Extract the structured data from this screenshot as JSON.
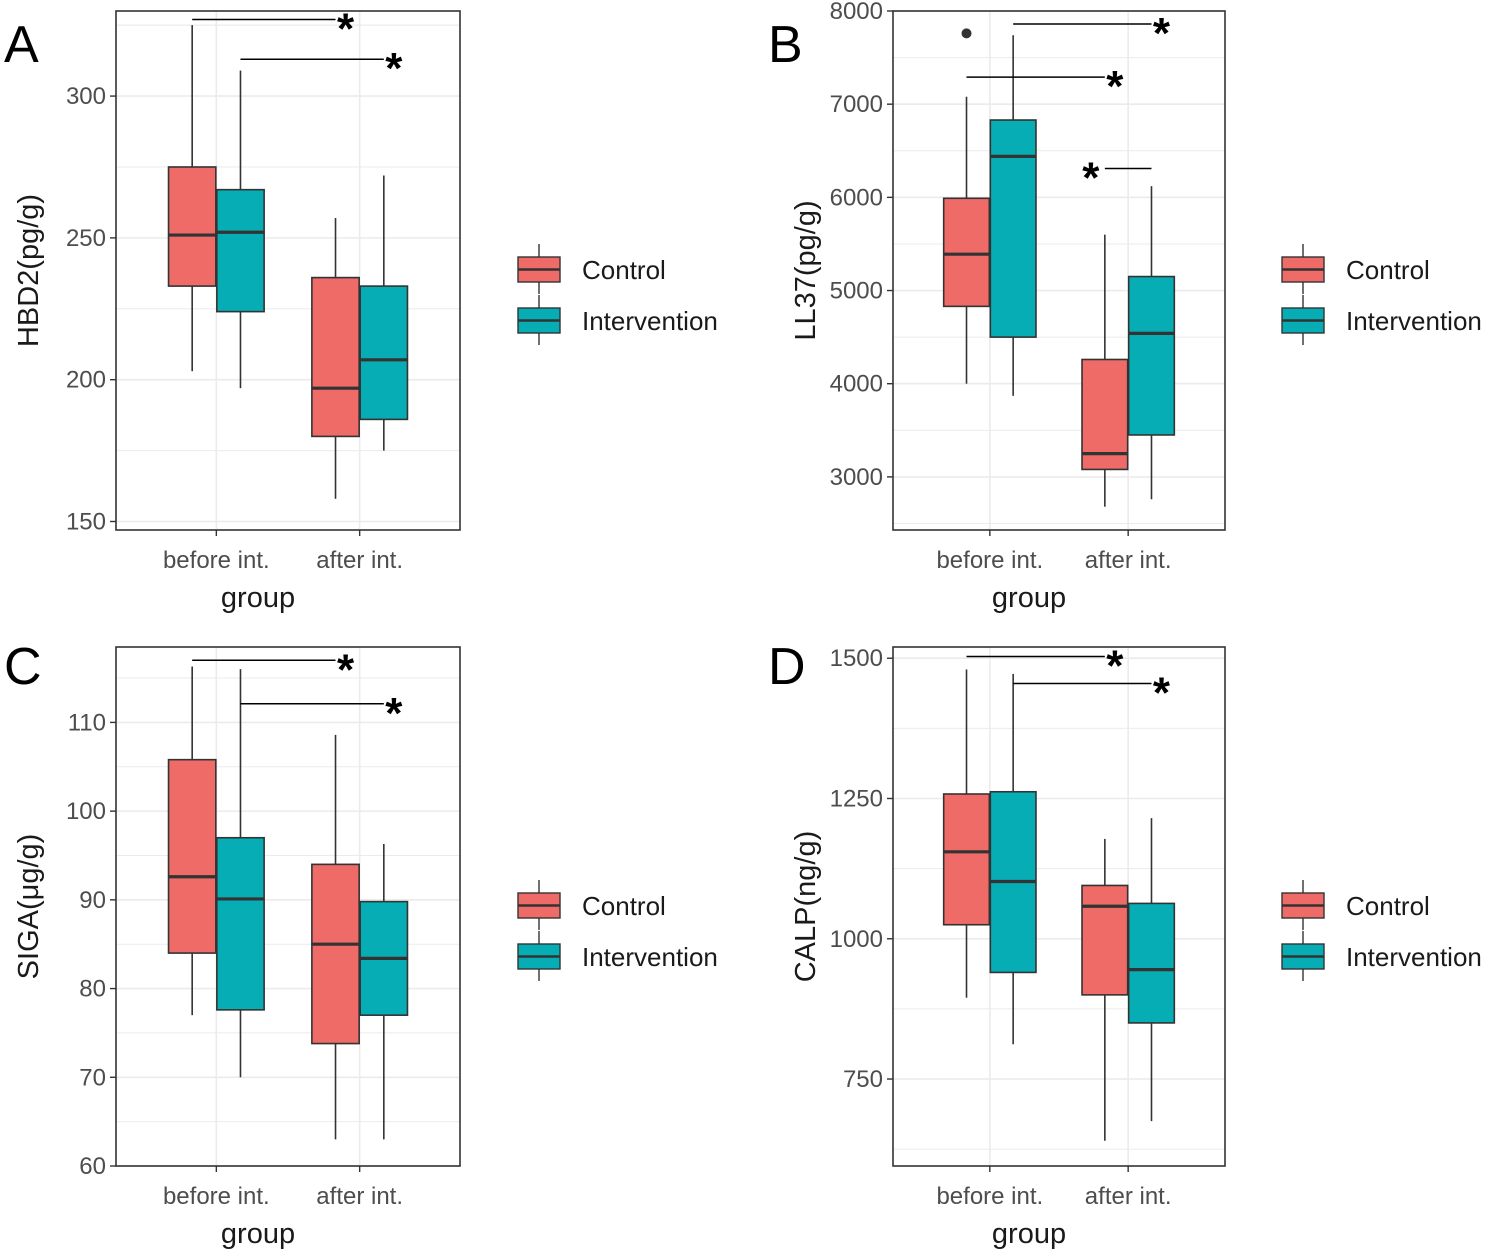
{
  "colors": {
    "control": "#ee6b67",
    "intervention": "#06adb5",
    "outline": "#333333",
    "grid": "#ebebeb"
  },
  "chart_data": [
    {
      "type": "box",
      "panel": "A",
      "xlabel": "group",
      "ylabel": "HBD2(pg/g)",
      "categories": [
        "before int.",
        "after int."
      ],
      "ylim": [
        147,
        330
      ],
      "yticks": [
        150,
        200,
        250,
        300
      ],
      "grid": true,
      "legend": "right",
      "series": [
        {
          "name": "Control",
          "boxes": [
            {
              "min": 203,
              "q1": 233,
              "median": 251,
              "q3": 275,
              "max": 325
            },
            {
              "min": 158,
              "q1": 180,
              "median": 197,
              "q3": 236,
              "max": 257
            }
          ]
        },
        {
          "name": "Intervention",
          "boxes": [
            {
              "min": 197,
              "q1": 224,
              "median": 252,
              "q3": 267,
              "max": 309
            },
            {
              "min": 175,
              "q1": 186,
              "median": 207,
              "q3": 233,
              "max": 272
            }
          ]
        }
      ],
      "outliers": [],
      "significance": [
        {
          "x1": "before int.:Control",
          "x2": "after int.:Control",
          "y": 327,
          "label": "*",
          "star_side": "right"
        },
        {
          "x1": "before int.:Intervention",
          "x2": "after int.:Intervention",
          "y": 313,
          "label": "*",
          "star_side": "right"
        }
      ]
    },
    {
      "type": "box",
      "panel": "B",
      "xlabel": "group",
      "ylabel": "LL37(pg/g)",
      "categories": [
        "before int.",
        "after int."
      ],
      "ylim": [
        2430,
        8000
      ],
      "yticks": [
        3000,
        4000,
        5000,
        6000,
        7000,
        8000
      ],
      "grid": true,
      "legend": "right",
      "series": [
        {
          "name": "Control",
          "boxes": [
            {
              "min": 4000,
              "q1": 4830,
              "median": 5390,
              "q3": 5990,
              "max": 7080
            },
            {
              "min": 2680,
              "q1": 3080,
              "median": 3250,
              "q3": 4260,
              "max": 5600
            }
          ]
        },
        {
          "name": "Intervention",
          "boxes": [
            {
              "min": 3870,
              "q1": 4500,
              "median": 6440,
              "q3": 6830,
              "max": 7740
            },
            {
              "min": 2760,
              "q1": 3450,
              "median": 4540,
              "q3": 5150,
              "max": 6120
            }
          ]
        }
      ],
      "outliers": [
        {
          "category": "before int.",
          "series": "Control",
          "value": 7760
        }
      ],
      "significance": [
        {
          "x1": "before int.:Intervention",
          "x2": "after int.:Intervention",
          "y": 7860,
          "label": "*",
          "star_side": "right"
        },
        {
          "x1": "before int.:Control",
          "x2": "after int.:Control",
          "y": 7290,
          "label": "*",
          "star_side": "right"
        },
        {
          "x1": "after int.:Control",
          "x2": "after int.:Intervention",
          "y": 6310,
          "label": "*",
          "star_side": "left"
        }
      ]
    },
    {
      "type": "box",
      "panel": "C",
      "xlabel": "group",
      "ylabel": "SIGA(μg/g)",
      "categories": [
        "before int.",
        "after int."
      ],
      "ylim": [
        60,
        118.5
      ],
      "yticks": [
        60,
        70,
        80,
        90,
        100,
        110
      ],
      "grid": true,
      "legend": "right",
      "series": [
        {
          "name": "Control",
          "boxes": [
            {
              "min": 77,
              "q1": 84,
              "median": 92.6,
              "q3": 105.8,
              "max": 116.3
            },
            {
              "min": 63,
              "q1": 73.8,
              "median": 85,
              "q3": 94,
              "max": 108.6
            }
          ]
        },
        {
          "name": "Intervention",
          "boxes": [
            {
              "min": 70,
              "q1": 77.6,
              "median": 90.1,
              "q3": 97,
              "max": 116
            },
            {
              "min": 63,
              "q1": 77,
              "median": 83.4,
              "q3": 89.8,
              "max": 96.3
            }
          ]
        }
      ],
      "outliers": [],
      "significance": [
        {
          "x1": "before int.:Control",
          "x2": "after int.:Control",
          "y": 117,
          "label": "*",
          "star_side": "right"
        },
        {
          "x1": "before int.:Intervention",
          "x2": "after int.:Intervention",
          "y": 112.1,
          "label": "*",
          "star_side": "right"
        }
      ]
    },
    {
      "type": "box",
      "panel": "D",
      "xlabel": "group",
      "ylabel": "CALP(ng/g)",
      "categories": [
        "before int.",
        "after int."
      ],
      "ylim": [
        595,
        1520
      ],
      "yticks": [
        750,
        1000,
        1250,
        1500
      ],
      "grid": true,
      "legend": "right",
      "series": [
        {
          "name": "Control",
          "boxes": [
            {
              "min": 895,
              "q1": 1025,
              "median": 1155,
              "q3": 1258,
              "max": 1480
            },
            {
              "min": 640,
              "q1": 900,
              "median": 1058,
              "q3": 1095,
              "max": 1178
            }
          ]
        },
        {
          "name": "Intervention",
          "boxes": [
            {
              "min": 812,
              "q1": 940,
              "median": 1102,
              "q3": 1262,
              "max": 1472
            },
            {
              "min": 675,
              "q1": 850,
              "median": 945,
              "q3": 1063,
              "max": 1215
            }
          ]
        }
      ],
      "outliers": [],
      "significance": [
        {
          "x1": "before int.:Control",
          "x2": "after int.:Control",
          "y": 1503,
          "label": "*",
          "star_side": "right"
        },
        {
          "x1": "before int.:Intervention",
          "x2": "after int.:Intervention",
          "y": 1455,
          "label": "*",
          "star_side": "right"
        }
      ]
    }
  ]
}
